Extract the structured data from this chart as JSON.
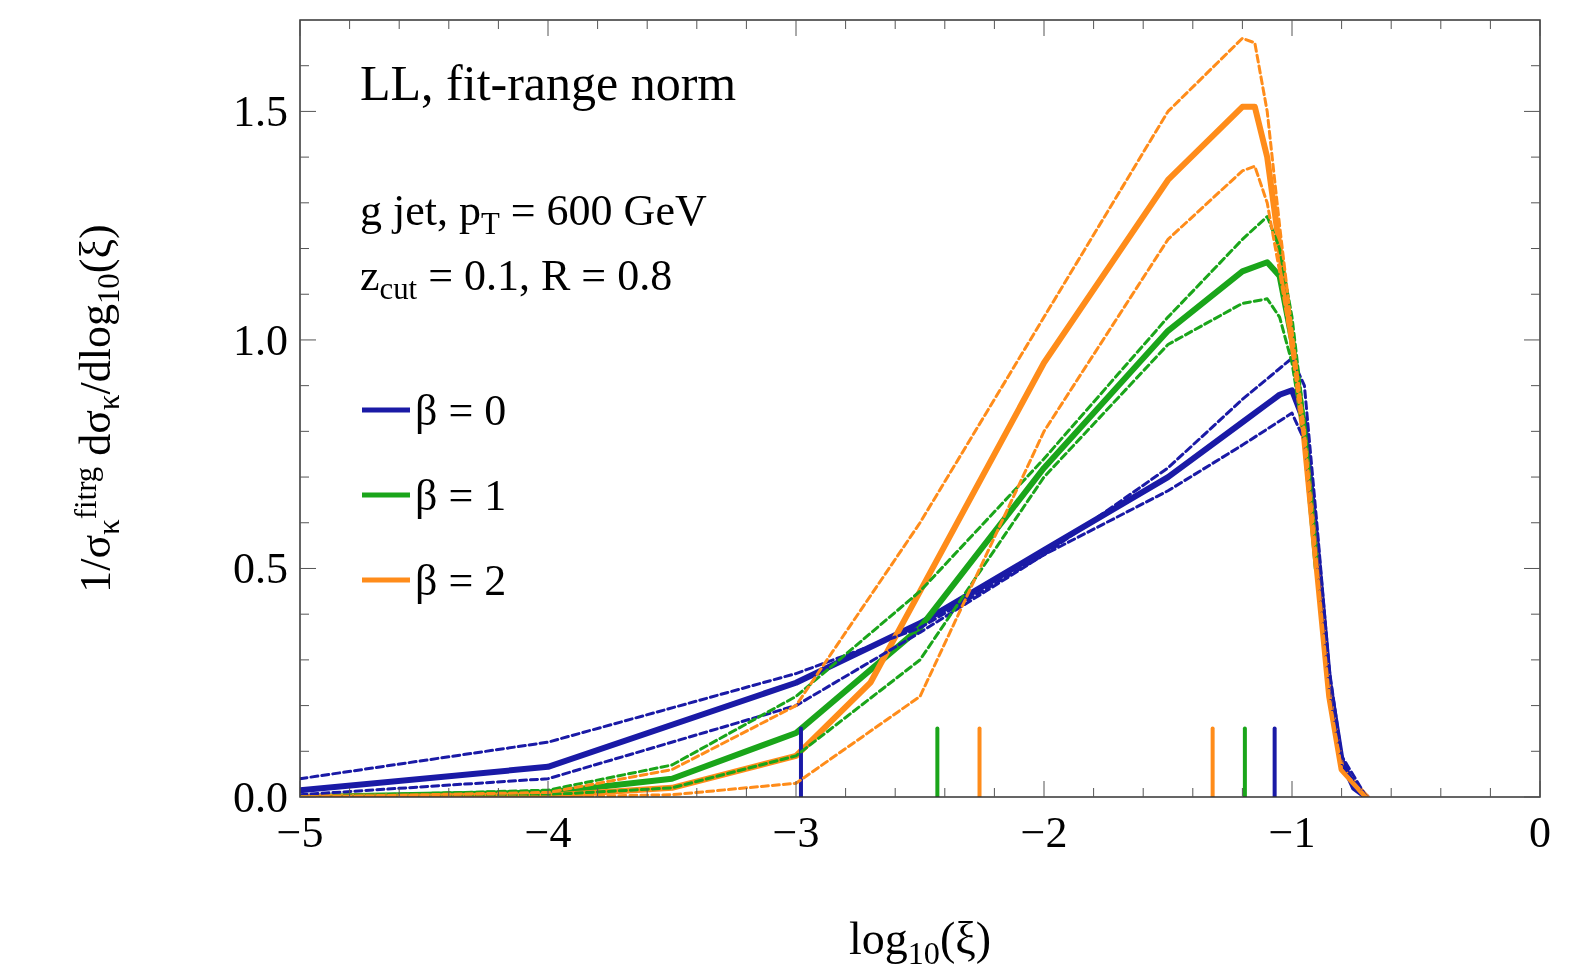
{
  "chart_data": {
    "type": "line",
    "xlabel": "log$_{10}$(ξ)",
    "ylabel": "1/σ$_{κ}$$^{fitrg}$ dσ$_{κ}$/dlog$_{10}$(ξ)",
    "annotations": [
      "LL, fit-range norm",
      "g jet, p$_{T}$ = 600 GeV",
      "z$_{cut}$ = 0.1, R = 0.8"
    ],
    "xlim": [
      -5,
      0
    ],
    "ylim": [
      0,
      1.7
    ],
    "xticks": [
      {
        "value": -5,
        "label": "−5"
      },
      {
        "value": -4.8,
        "label": null
      },
      {
        "value": -4.6,
        "label": null
      },
      {
        "value": -4.4,
        "label": null
      },
      {
        "value": -4.2,
        "label": null
      },
      {
        "value": -4,
        "label": "−4"
      },
      {
        "value": -3.8,
        "label": null
      },
      {
        "value": -3.6,
        "label": null
      },
      {
        "value": -3.4,
        "label": null
      },
      {
        "value": -3.2,
        "label": null
      },
      {
        "value": -3,
        "label": "−3"
      },
      {
        "value": -2.8,
        "label": null
      },
      {
        "value": -2.6,
        "label": null
      },
      {
        "value": -2.4,
        "label": null
      },
      {
        "value": -2.2,
        "label": null
      },
      {
        "value": -2,
        "label": "−2"
      },
      {
        "value": -1.8,
        "label": null
      },
      {
        "value": -1.6,
        "label": null
      },
      {
        "value": -1.4,
        "label": null
      },
      {
        "value": -1.2,
        "label": null
      },
      {
        "value": -1,
        "label": "−1"
      },
      {
        "value": -0.8,
        "label": null
      },
      {
        "value": -0.6,
        "label": null
      },
      {
        "value": -0.4,
        "label": null
      },
      {
        "value": -0.2,
        "label": null
      },
      {
        "value": 0,
        "label": "0"
      }
    ],
    "yticks": [
      {
        "value": 0,
        "label": "0.0"
      },
      {
        "value": 0.1,
        "label": null
      },
      {
        "value": 0.2,
        "label": null
      },
      {
        "value": 0.3,
        "label": null
      },
      {
        "value": 0.4,
        "label": null
      },
      {
        "value": 0.5,
        "label": "0.5"
      },
      {
        "value": 0.6,
        "label": null
      },
      {
        "value": 0.7,
        "label": null
      },
      {
        "value": 0.8,
        "label": null
      },
      {
        "value": 0.9,
        "label": null
      },
      {
        "value": 1,
        "label": "1.0"
      },
      {
        "value": 1.1,
        "label": null
      },
      {
        "value": 1.2,
        "label": null
      },
      {
        "value": 1.3,
        "label": null
      },
      {
        "value": 1.4,
        "label": null
      },
      {
        "value": 1.5,
        "label": "1.5"
      },
      {
        "value": 1.6,
        "label": null
      }
    ],
    "grid": false,
    "legend": "left",
    "series": [
      {
        "color": "#1a1aa6",
        "line_style": "dashed",
        "x": [
          -5,
          -4,
          -3,
          -2.5,
          -2,
          -1.5,
          -1.2,
          -1.0,
          -0.95,
          -0.9,
          -0.85,
          -0.8,
          -0.7
        ],
        "values": [
          0.04,
          0.12,
          0.27,
          0.37,
          0.53,
          0.72,
          0.87,
          0.96,
          0.9,
          0.6,
          0.28,
          0.09,
          0
        ]
      },
      {
        "color": "#1a1aa6",
        "line_style": "dashed",
        "x": [
          -5,
          -4,
          -3,
          -2.5,
          -2,
          -1.5,
          -1.2,
          -1.0,
          -0.95,
          -0.9,
          -0.85,
          -0.8,
          -0.7
        ],
        "values": [
          0.005,
          0.04,
          0.2,
          0.36,
          0.53,
          0.67,
          0.77,
          0.84,
          0.78,
          0.52,
          0.23,
          0.07,
          0
        ]
      },
      {
        "color": "#1aa51a",
        "line_style": "dashed",
        "x": [
          -5,
          -4,
          -3.5,
          -3,
          -2.5,
          -2,
          -1.5,
          -1.2,
          -1.1,
          -1.05,
          -1.0,
          -0.95,
          -0.9
        ],
        "values": [
          0,
          0.015,
          0.07,
          0.22,
          0.45,
          0.74,
          1.05,
          1.22,
          1.27,
          1.2,
          1.05,
          0.82,
          0.52
        ]
      },
      {
        "color": "#1aa51a",
        "line_style": "dashed",
        "x": [
          -5,
          -4,
          -3.5,
          -3,
          -2.5,
          -2,
          -1.5,
          -1.2,
          -1.1,
          -1.05,
          -1.0,
          -0.95
        ],
        "values": [
          0,
          0.005,
          0.02,
          0.09,
          0.3,
          0.7,
          0.99,
          1.08,
          1.09,
          1.05,
          0.95,
          0.78
        ]
      },
      {
        "color": "#ff8c1a",
        "line_style": "dashed",
        "x": [
          -5,
          -4,
          -3.5,
          -3,
          -2.5,
          -2,
          -1.5,
          -1.2,
          -1.15,
          -1.1,
          -1.05,
          -1.0,
          -0.95,
          -0.9,
          -0.85,
          -0.8,
          -0.7
        ],
        "values": [
          0,
          0.01,
          0.06,
          0.2,
          0.6,
          1.05,
          1.5,
          1.66,
          1.65,
          1.5,
          1.25,
          1.02,
          0.8,
          0.51,
          0.22,
          0.06,
          0
        ]
      },
      {
        "color": "#ff8c1a",
        "line_style": "dashed",
        "x": [
          -5,
          -4,
          -3.5,
          -3,
          -2.5,
          -2,
          -1.5,
          -1.2,
          -1.15,
          -1.1,
          -1.05,
          -1.0,
          -0.95,
          -0.9,
          -0.85,
          -0.8,
          -0.7
        ],
        "values": [
          0,
          0,
          0.005,
          0.03,
          0.22,
          0.8,
          1.22,
          1.37,
          1.38,
          1.3,
          1.15,
          0.98,
          0.77,
          0.49,
          0.21,
          0.06,
          0
        ]
      },
      {
        "name": "β = 0",
        "color": "#1a1aa6",
        "line_style": "solid",
        "x": [
          -5,
          -4,
          -3,
          -2.5,
          -2,
          -1.5,
          -1.2,
          -1.05,
          -1.0,
          -0.95,
          -0.9,
          -0.85,
          -0.8,
          -0.75,
          -0.7
        ],
        "values": [
          0.015,
          0.066,
          0.25,
          0.38,
          0.54,
          0.7,
          0.82,
          0.88,
          0.89,
          0.82,
          0.55,
          0.25,
          0.08,
          0.02,
          0
        ]
      },
      {
        "name": "β = 1",
        "color": "#1aa51a",
        "line_style": "solid",
        "x": [
          -5,
          -4,
          -3.5,
          -3,
          -2.5,
          -2,
          -1.5,
          -1.2,
          -1.1,
          -1.05,
          -1.0,
          -0.95,
          -0.9
        ],
        "values": [
          0,
          0.01,
          0.04,
          0.14,
          0.37,
          0.72,
          1.02,
          1.15,
          1.17,
          1.14,
          1.0,
          0.8,
          0.5
        ]
      },
      {
        "name": "β = 2",
        "color": "#ff8c1a",
        "line_style": "solid",
        "x": [
          -5,
          -4,
          -3.5,
          -3,
          -2.7,
          -2.5,
          -2,
          -1.5,
          -1.2,
          -1.15,
          -1.1,
          -1.05,
          -1.0,
          -0.95,
          -0.9,
          -0.85,
          -0.8,
          -0.7
        ],
        "values": [
          0,
          0.003,
          0.02,
          0.09,
          0.25,
          0.45,
          0.95,
          1.35,
          1.51,
          1.51,
          1.4,
          1.2,
          1.0,
          0.78,
          0.5,
          0.22,
          0.06,
          0
        ]
      },
      {
        "color": "#1a1aa6",
        "line_style": "solid",
        "x": [
          -2.98,
          -2.98
        ],
        "values": [
          0,
          0.15
        ]
      },
      {
        "color": "#1aa51a",
        "line_style": "solid",
        "x": [
          -2.43,
          -2.43
        ],
        "values": [
          0,
          0.15
        ]
      },
      {
        "color": "#ff8c1a",
        "line_style": "solid",
        "x": [
          -2.26,
          -2.26
        ],
        "values": [
          0,
          0.15
        ]
      },
      {
        "color": "#ff8c1a",
        "line_style": "solid",
        "x": [
          -1.32,
          -1.32
        ],
        "values": [
          0,
          0.15
        ]
      },
      {
        "color": "#1aa51a",
        "line_style": "solid",
        "x": [
          -1.19,
          -1.19
        ],
        "values": [
          0,
          0.15
        ]
      },
      {
        "color": "#1a1aa6",
        "line_style": "solid",
        "x": [
          -1.07,
          -1.07
        ],
        "values": [
          0,
          0.15
        ]
      }
    ]
  }
}
